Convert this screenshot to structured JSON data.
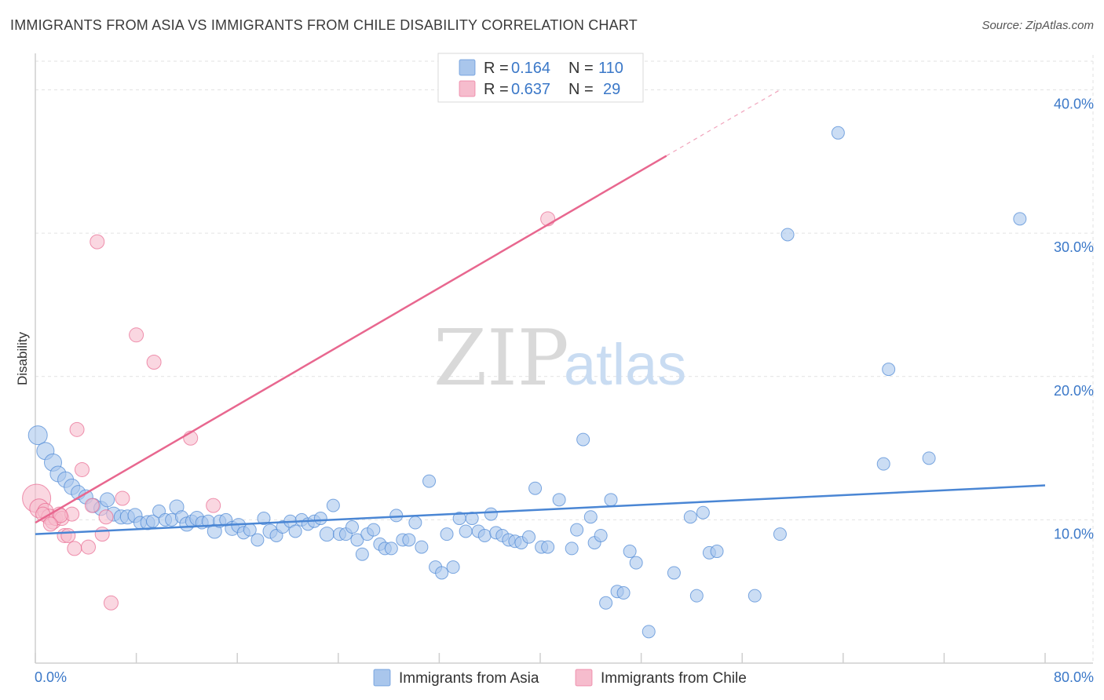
{
  "title": "IMMIGRANTS FROM ASIA VS IMMIGRANTS FROM CHILE DISABILITY CORRELATION CHART",
  "source": "Source: ZipAtlas.com",
  "watermark": {
    "zip": "ZIP",
    "atlas": "atlas"
  },
  "legend": {
    "rows": [
      {
        "r_label": "R =",
        "r_value": "0.164",
        "n_label": "N =",
        "n_value": "110",
        "color": "#a9c6ec"
      },
      {
        "r_label": "R =",
        "r_value": "0.637",
        "n_label": "N =",
        "n_value": "29",
        "color": "#f6bccd"
      }
    ]
  },
  "bottom_legend": [
    {
      "label": "Immigrants from Asia",
      "color": "#a9c6ec"
    },
    {
      "label": "Immigrants from Chile",
      "color": "#f6bccd"
    }
  ],
  "chart_data": {
    "type": "scatter",
    "title": "IMMIGRANTS FROM ASIA VS IMMIGRANTS FROM CHILE DISABILITY CORRELATION CHART",
    "xlabel": "",
    "ylabel": "Disability",
    "xlim": [
      0,
      80
    ],
    "ylim": [
      0,
      42
    ],
    "x_tick_labels": [
      "0.0%",
      "80.0%"
    ],
    "y_ticks": [
      10,
      20,
      30,
      40
    ],
    "y_tick_labels": [
      "10.0%",
      "20.0%",
      "30.0%",
      "40.0%"
    ],
    "grid": true,
    "legend_position": "top-center",
    "series": [
      {
        "name": "Immigrants from Asia",
        "color": "#4a86d4",
        "fill": "#a9c6ec",
        "trend": {
          "x": [
            0,
            80
          ],
          "y": [
            9.0,
            12.4
          ]
        },
        "points": [
          [
            0.2,
            15.9,
            12
          ],
          [
            0.8,
            14.8,
            11
          ],
          [
            1.4,
            14.0,
            11
          ],
          [
            1.8,
            13.2,
            10
          ],
          [
            2.4,
            12.8,
            10
          ],
          [
            2.9,
            12.3,
            10
          ],
          [
            3.4,
            11.9,
            9
          ],
          [
            4.0,
            11.6,
            9
          ],
          [
            4.6,
            11.0,
            9
          ],
          [
            5.2,
            10.8,
            9
          ],
          [
            5.7,
            11.4,
            9
          ],
          [
            6.2,
            10.4,
            9
          ],
          [
            6.8,
            10.2,
            9
          ],
          [
            7.3,
            10.2,
            9
          ],
          [
            7.9,
            10.3,
            9
          ],
          [
            8.3,
            9.8,
            8
          ],
          [
            8.9,
            9.8,
            9
          ],
          [
            9.3,
            9.9,
            8
          ],
          [
            9.8,
            10.6,
            8
          ],
          [
            10.3,
            10.0,
            8
          ],
          [
            10.8,
            10.0,
            8
          ],
          [
            11.2,
            10.9,
            9
          ],
          [
            11.6,
            10.2,
            8
          ],
          [
            12.0,
            9.7,
            9
          ],
          [
            12.4,
            9.9,
            8
          ],
          [
            12.8,
            10.1,
            9
          ],
          [
            13.2,
            9.8,
            8
          ],
          [
            13.7,
            9.9,
            8
          ],
          [
            14.2,
            9.2,
            9
          ],
          [
            14.6,
            9.9,
            8
          ],
          [
            15.1,
            10.0,
            8
          ],
          [
            15.6,
            9.4,
            9
          ],
          [
            16.1,
            9.6,
            9
          ],
          [
            16.5,
            9.1,
            8
          ],
          [
            17.0,
            9.3,
            8
          ],
          [
            17.6,
            8.6,
            8
          ],
          [
            18.1,
            10.1,
            8
          ],
          [
            18.6,
            9.2,
            9
          ],
          [
            19.1,
            8.9,
            8
          ],
          [
            19.6,
            9.5,
            8
          ],
          [
            20.2,
            9.9,
            8
          ],
          [
            20.6,
            9.2,
            8
          ],
          [
            21.1,
            10.0,
            8
          ],
          [
            21.6,
            9.7,
            8
          ],
          [
            22.1,
            9.9,
            8
          ],
          [
            22.6,
            10.1,
            8
          ],
          [
            23.1,
            9.0,
            9
          ],
          [
            23.6,
            11.0,
            8
          ],
          [
            24.1,
            9.0,
            8
          ],
          [
            24.6,
            9.0,
            8
          ],
          [
            25.1,
            9.5,
            8
          ],
          [
            25.5,
            8.6,
            8
          ],
          [
            25.9,
            7.6,
            8
          ],
          [
            26.3,
            9.0,
            8
          ],
          [
            26.8,
            9.3,
            8
          ],
          [
            27.3,
            8.3,
            8
          ],
          [
            27.7,
            8.0,
            8
          ],
          [
            28.2,
            8.0,
            8
          ],
          [
            28.6,
            10.3,
            8
          ],
          [
            29.1,
            8.6,
            8
          ],
          [
            29.6,
            8.6,
            8
          ],
          [
            30.1,
            9.8,
            8
          ],
          [
            30.6,
            8.1,
            8
          ],
          [
            31.2,
            12.7,
            8
          ],
          [
            31.7,
            6.7,
            8
          ],
          [
            32.2,
            6.3,
            8
          ],
          [
            32.6,
            9.0,
            8
          ],
          [
            33.1,
            6.7,
            8
          ],
          [
            33.6,
            10.1,
            8
          ],
          [
            34.1,
            9.2,
            8
          ],
          [
            34.6,
            10.1,
            8
          ],
          [
            35.1,
            9.2,
            8
          ],
          [
            35.6,
            8.9,
            8
          ],
          [
            36.1,
            10.4,
            8
          ],
          [
            36.5,
            9.1,
            8
          ],
          [
            37.0,
            8.9,
            8
          ],
          [
            37.5,
            8.6,
            8
          ],
          [
            38.0,
            8.5,
            8
          ],
          [
            38.5,
            8.4,
            8
          ],
          [
            39.1,
            8.8,
            8
          ],
          [
            39.6,
            12.2,
            8
          ],
          [
            40.1,
            8.1,
            8
          ],
          [
            40.6,
            8.1,
            8
          ],
          [
            41.5,
            11.4,
            8
          ],
          [
            42.5,
            8.0,
            8
          ],
          [
            42.9,
            9.3,
            8
          ],
          [
            43.4,
            15.6,
            8
          ],
          [
            44.0,
            10.2,
            8
          ],
          [
            44.3,
            8.4,
            8
          ],
          [
            44.8,
            8.9,
            8
          ],
          [
            45.2,
            4.2,
            8
          ],
          [
            45.6,
            11.4,
            8
          ],
          [
            46.1,
            5.0,
            8
          ],
          [
            46.6,
            4.9,
            8
          ],
          [
            47.1,
            7.8,
            8
          ],
          [
            47.6,
            7.0,
            8
          ],
          [
            48.6,
            2.2,
            8
          ],
          [
            50.6,
            6.3,
            8
          ],
          [
            51.9,
            10.2,
            8
          ],
          [
            52.4,
            4.7,
            8
          ],
          [
            52.9,
            10.5,
            8
          ],
          [
            53.4,
            7.7,
            8
          ],
          [
            54.0,
            7.8,
            8
          ],
          [
            57.0,
            4.7,
            8
          ],
          [
            59.0,
            9.0,
            8
          ],
          [
            59.6,
            29.9,
            8
          ],
          [
            63.6,
            37.0,
            8
          ],
          [
            67.2,
            13.9,
            8
          ],
          [
            67.6,
            20.5,
            8
          ],
          [
            70.8,
            14.3,
            8
          ],
          [
            78.0,
            31.0,
            8
          ]
        ]
      },
      {
        "name": "Immigrants from Chile",
        "color": "#e8678f",
        "fill": "#f6bccd",
        "trend": {
          "x": [
            0,
            50
          ],
          "y": [
            9.8,
            35.4
          ]
        },
        "trend_dashed": {
          "x": [
            50,
            59
          ],
          "y": [
            35.4,
            40.0
          ]
        },
        "points": [
          [
            0.1,
            11.5,
            18
          ],
          [
            0.3,
            10.8,
            12
          ],
          [
            0.8,
            10.6,
            10
          ],
          [
            1.1,
            10.2,
            10
          ],
          [
            1.4,
            9.9,
            10
          ],
          [
            1.6,
            10.1,
            9
          ],
          [
            1.9,
            10.4,
            9
          ],
          [
            2.1,
            10.1,
            9
          ],
          [
            2.3,
            8.9,
            9
          ],
          [
            2.6,
            8.9,
            9
          ],
          [
            2.9,
            10.4,
            9
          ],
          [
            3.1,
            8.0,
            9
          ],
          [
            3.3,
            16.3,
            9
          ],
          [
            3.7,
            13.5,
            9
          ],
          [
            4.2,
            8.1,
            9
          ],
          [
            4.5,
            11.0,
            9
          ],
          [
            4.9,
            29.4,
            9
          ],
          [
            5.3,
            9.0,
            9
          ],
          [
            5.6,
            10.2,
            9
          ],
          [
            6.0,
            4.2,
            9
          ],
          [
            6.9,
            11.5,
            9
          ],
          [
            8.0,
            22.9,
            9
          ],
          [
            9.4,
            21.0,
            9
          ],
          [
            12.3,
            15.7,
            9
          ],
          [
            14.1,
            11.0,
            9
          ],
          [
            40.6,
            31.0,
            9
          ],
          [
            2.0,
            10.3,
            9
          ],
          [
            0.6,
            10.4,
            9
          ],
          [
            1.2,
            9.7,
            9
          ]
        ]
      }
    ]
  }
}
